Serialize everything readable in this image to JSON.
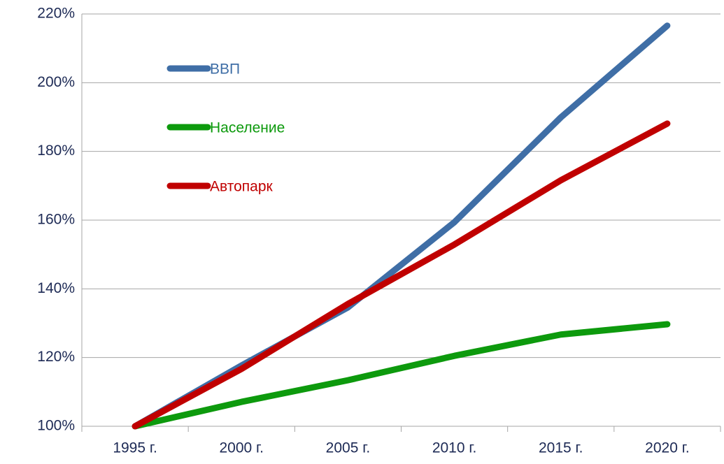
{
  "chart_data": {
    "type": "line",
    "categories": [
      "1995 г.",
      "2000 г.",
      "2005 г.",
      "2010 г.",
      "2015 г.",
      "2020 г."
    ],
    "series": [
      {
        "name": "ВВП",
        "color": "#3f6ea6",
        "values": [
          100,
          117.7,
          134.6,
          159.4,
          189.9,
          216.6
        ]
      },
      {
        "name": "Население",
        "color": "#0d9a0d",
        "values": [
          100,
          107.1,
          113.4,
          120.5,
          126.7,
          129.7
        ]
      },
      {
        "name": "Автопарк",
        "color": "#c00000",
        "values": [
          100,
          116.7,
          135.6,
          152.9,
          171.6,
          188.1
        ]
      }
    ],
    "ylim": [
      100,
      220
    ],
    "yticks": [
      {
        "value": 100,
        "label": "100%"
      },
      {
        "value": 120,
        "label": "120%"
      },
      {
        "value": 140,
        "label": "140%"
      },
      {
        "value": 160,
        "label": "160%"
      },
      {
        "value": 180,
        "label": "180%"
      },
      {
        "value": 200,
        "label": "200%"
      },
      {
        "value": 220,
        "label": "220%"
      }
    ],
    "grid": true
  }
}
